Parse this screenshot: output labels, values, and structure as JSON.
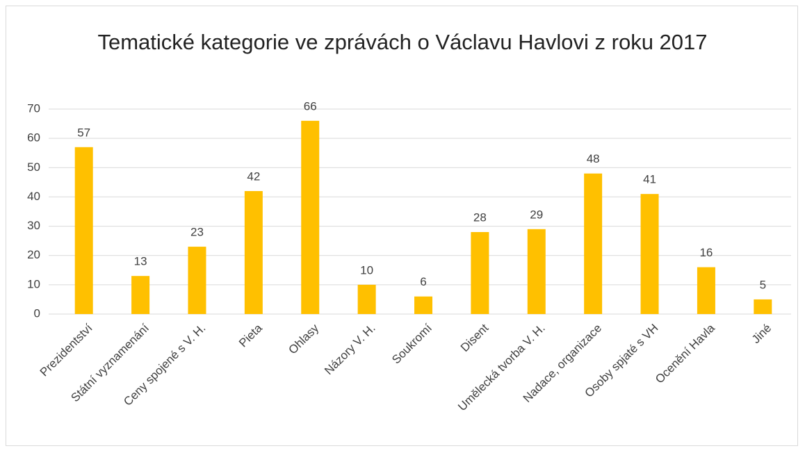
{
  "chart_data": {
    "type": "bar",
    "title": "Tematické kategorie ve zprávách o Václavu Havlovi z roku 2017",
    "categories": [
      "Prezidentství",
      "Státní vyznamenání",
      "Ceny spojené s V. H.",
      "Pieta",
      "Ohlasy",
      "Názory V. H.",
      "Soukromí",
      "Disent",
      "Umělecká tvorba V. H.",
      "Nadace, organizace",
      "Osoby spjaté s VH",
      "Ocenění Havla",
      "Jiné"
    ],
    "values": [
      57,
      13,
      23,
      42,
      66,
      10,
      6,
      28,
      29,
      48,
      41,
      16,
      5
    ],
    "color": "#ffc000",
    "ylim": [
      0,
      70
    ],
    "yticks": [
      0,
      10,
      20,
      30,
      40,
      50,
      60,
      70
    ],
    "grid": true
  }
}
